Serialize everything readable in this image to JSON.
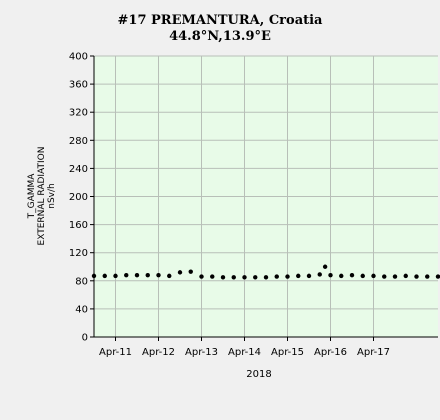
{
  "chart_data": {
    "type": "scatter",
    "title": "#17 PREMANTURA, Croatia",
    "subtitle": "44.8°N,13.9°E",
    "ylabel_lines": [
      "T_GAMMA",
      "EXTERNAL RADIATION",
      "nSv/h"
    ],
    "xlabel": "2018",
    "ylim": [
      0,
      400
    ],
    "yticks": [
      0,
      40,
      80,
      120,
      160,
      200,
      240,
      280,
      320,
      360,
      400
    ],
    "xlim": [
      "2018-04-10 12:00",
      "2018-04-18 12:00"
    ],
    "xticks": [
      "2018-04-11",
      "2018-04-12",
      "2018-04-13",
      "2018-04-14",
      "2018-04-15",
      "2018-04-16",
      "2018-04-17"
    ],
    "xtick_labels": [
      "Apr-11",
      "Apr-12",
      "Apr-13",
      "Apr-14",
      "Apr-15",
      "Apr-16",
      "Apr-17"
    ],
    "grid": true,
    "colors": {
      "plot_background": "#e8fbe8",
      "grid": "#b8bfb8",
      "marker": "#000000",
      "figure_background": "#f0f0f0"
    },
    "series": [
      {
        "x": [
          "2018-04-10 12:00",
          "2018-04-10 18:00",
          "2018-04-11 00:00",
          "2018-04-11 06:00",
          "2018-04-11 12:00",
          "2018-04-11 18:00",
          "2018-04-12 00:00",
          "2018-04-12 06:00",
          "2018-04-12 12:00",
          "2018-04-12 18:00",
          "2018-04-13 00:00",
          "2018-04-13 06:00",
          "2018-04-13 12:00",
          "2018-04-13 18:00",
          "2018-04-14 00:00",
          "2018-04-14 06:00",
          "2018-04-14 12:00",
          "2018-04-14 18:00",
          "2018-04-15 00:00",
          "2018-04-15 06:00",
          "2018-04-15 12:00",
          "2018-04-15 18:00",
          "2018-04-15 21:00",
          "2018-04-16 00:00",
          "2018-04-16 06:00",
          "2018-04-16 12:00",
          "2018-04-16 18:00",
          "2018-04-17 00:00",
          "2018-04-17 06:00",
          "2018-04-17 12:00",
          "2018-04-17 18:00",
          "2018-04-18 00:00",
          "2018-04-18 06:00",
          "2018-04-18 12:00"
        ],
        "y": [
          87,
          87,
          87,
          88,
          88,
          88,
          88,
          87,
          92,
          93,
          86,
          86,
          85,
          85,
          85,
          85,
          85,
          86,
          86,
          87,
          87,
          89,
          100,
          88,
          87,
          88,
          87,
          87,
          86,
          86,
          87,
          86,
          86,
          86
        ]
      }
    ]
  }
}
